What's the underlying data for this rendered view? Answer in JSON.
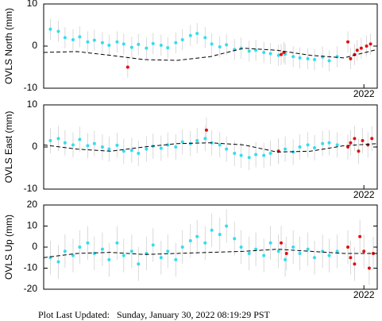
{
  "chart_data": [
    {
      "type": "scatter",
      "ylabel": "OVLS North (mm)",
      "xlim": [
        2019.6,
        2022.1
      ],
      "xticks": [
        2022
      ],
      "ylim": [
        -10,
        10
      ],
      "yticks": [
        -10,
        0,
        10
      ],
      "series": [
        {
          "color": "#33ddee",
          "error": 2.5,
          "x": [
            2019.65,
            2019.71,
            2019.76,
            2019.82,
            2019.87,
            2019.93,
            2019.98,
            2020.04,
            2020.09,
            2020.15,
            2020.2,
            2020.26,
            2020.31,
            2020.37,
            2020.42,
            2020.48,
            2020.53,
            2020.59,
            2020.64,
            2020.7,
            2020.75,
            2020.81,
            2020.86,
            2020.92,
            2020.97,
            2021.03,
            2021.08,
            2021.14,
            2021.19,
            2021.25,
            2021.3,
            2021.36,
            2021.41,
            2021.47,
            2021.52,
            2021.58,
            2021.63,
            2021.69,
            2021.74,
            2021.8
          ],
          "values": [
            4,
            3.5,
            2,
            1.5,
            2.2,
            1,
            1.4,
            0.8,
            0.2,
            1,
            0.5,
            -0.3,
            0.4,
            -0.5,
            0.6,
            0.2,
            -0.4,
            0.8,
            1.5,
            2.5,
            3,
            2,
            0.5,
            -0.2,
            0.3,
            -0.8,
            -0.5,
            -1.2,
            -1,
            -1.5,
            -1.8,
            -2.2,
            -1.9,
            -2.5,
            -2.8,
            -3,
            -3.2,
            -2.6,
            -3.5,
            -2.5
          ]
        },
        {
          "color": "#e01010",
          "error": 2.5,
          "x": [
            2020.23,
            2021.38,
            2021.4,
            2021.88,
            2021.9,
            2021.93,
            2021.95,
            2021.98,
            2022.02,
            2022.05
          ],
          "values": [
            -5,
            -2,
            -1.5,
            1,
            -3,
            -2,
            -1,
            -0.5,
            0,
            0.5
          ]
        }
      ],
      "trend": {
        "color": "#000000",
        "x": [
          2019.6,
          2019.85,
          2020.1,
          2020.35,
          2020.6,
          2020.85,
          2021.1,
          2021.35,
          2021.6,
          2021.85,
          2022.1
        ],
        "values": [
          -1.5,
          -1.3,
          -2.2,
          -3.2,
          -3.4,
          -2.5,
          -0.5,
          -1.0,
          -2.2,
          -2.8,
          -0.8
        ]
      }
    },
    {
      "type": "scatter",
      "ylabel": "OVLS East (mm)",
      "xlim": [
        2019.6,
        2022.1
      ],
      "xticks": [
        2022
      ],
      "ylim": [
        -10,
        10
      ],
      "yticks": [
        -10,
        0,
        10
      ],
      "series": [
        {
          "color": "#33ddee",
          "error": 3,
          "x": [
            2019.65,
            2019.71,
            2019.76,
            2019.82,
            2019.87,
            2019.93,
            2019.98,
            2020.04,
            2020.09,
            2020.15,
            2020.2,
            2020.26,
            2020.31,
            2020.37,
            2020.42,
            2020.48,
            2020.53,
            2020.59,
            2020.64,
            2020.7,
            2020.75,
            2020.81,
            2020.86,
            2020.92,
            2020.97,
            2021.03,
            2021.08,
            2021.14,
            2021.19,
            2021.25,
            2021.3,
            2021.36,
            2021.41,
            2021.47,
            2021.52,
            2021.58,
            2021.63,
            2021.69,
            2021.74,
            2021.8
          ],
          "values": [
            1.5,
            2,
            1,
            0.5,
            1.8,
            0.3,
            0.8,
            0,
            -0.5,
            0.4,
            -1,
            -0.8,
            -1.5,
            -0.5,
            0.2,
            -0.3,
            0.5,
            0,
            1.2,
            0.8,
            1.5,
            2,
            1,
            0.5,
            -0.5,
            -1.5,
            -2,
            -2.5,
            -1.8,
            -2,
            -1.5,
            -1,
            -0.5,
            -1.2,
            0,
            0.5,
            -0.2,
            0.8,
            1,
            0.5
          ]
        },
        {
          "color": "#e01010",
          "error": 3,
          "x": [
            2020.82,
            2021.36,
            2021.88,
            2021.9,
            2021.93,
            2021.96,
            2021.99,
            2022.03,
            2022.06
          ],
          "values": [
            4,
            -1,
            0,
            1,
            2,
            -1,
            1.5,
            0.5,
            2
          ]
        }
      ],
      "trend": {
        "color": "#000000",
        "x": [
          2019.6,
          2019.85,
          2020.1,
          2020.35,
          2020.6,
          2020.85,
          2021.1,
          2021.35,
          2021.6,
          2021.85,
          2022.1
        ],
        "values": [
          0.5,
          -0.5,
          -1,
          0,
          0.8,
          1,
          0.5,
          -1.2,
          -1,
          0.3,
          0.8
        ]
      }
    },
    {
      "type": "scatter",
      "ylabel": "OVLS Up (mm)",
      "xlim": [
        2019.6,
        2022.1
      ],
      "xticks": [
        2022
      ],
      "ylim": [
        -20,
        20
      ],
      "yticks": [
        -20,
        -10,
        0,
        10,
        20
      ],
      "series": [
        {
          "color": "#33ddee",
          "error": 8,
          "x": [
            2019.65,
            2019.71,
            2019.76,
            2019.82,
            2019.87,
            2019.93,
            2019.98,
            2020.04,
            2020.09,
            2020.15,
            2020.2,
            2020.26,
            2020.31,
            2020.37,
            2020.42,
            2020.48,
            2020.53,
            2020.59,
            2020.64,
            2020.7,
            2020.75,
            2020.81,
            2020.86,
            2020.92,
            2020.97,
            2021.03,
            2021.08,
            2021.14,
            2021.19,
            2021.25,
            2021.3,
            2021.36,
            2021.41,
            2021.47,
            2021.52,
            2021.58,
            2021.63,
            2021.69,
            2021.74,
            2021.8
          ],
          "values": [
            -5,
            -7,
            -2,
            -4,
            0,
            2,
            -3,
            -1,
            -6,
            2,
            -4,
            -2,
            -8,
            -3,
            1,
            -5,
            -2,
            -6,
            0,
            3,
            5,
            2,
            8,
            6,
            10,
            4,
            0,
            -3,
            -1,
            -4,
            2,
            -2,
            -6,
            0,
            -3,
            -1,
            -5,
            -2,
            -4,
            -2
          ]
        },
        {
          "color": "#e01010",
          "error": 8,
          "x": [
            2021.38,
            2021.42,
            2021.88,
            2021.9,
            2021.93,
            2021.97,
            2022.0,
            2022.04,
            2022.07
          ],
          "values": [
            2,
            -3,
            0,
            -5,
            -8,
            5,
            -2,
            -10,
            -3
          ]
        }
      ],
      "trend": {
        "color": "#000000",
        "x": [
          2019.6,
          2019.85,
          2020.1,
          2020.35,
          2020.6,
          2020.85,
          2021.1,
          2021.35,
          2021.6,
          2021.85,
          2022.1
        ],
        "values": [
          -5,
          -3,
          -2.5,
          -3.5,
          -3,
          -2.5,
          -2,
          -1,
          -2,
          -3,
          -3
        ]
      }
    }
  ],
  "footer": "Plot Last Updated:   Sunday, January 30, 2022 08:19:29 PST"
}
